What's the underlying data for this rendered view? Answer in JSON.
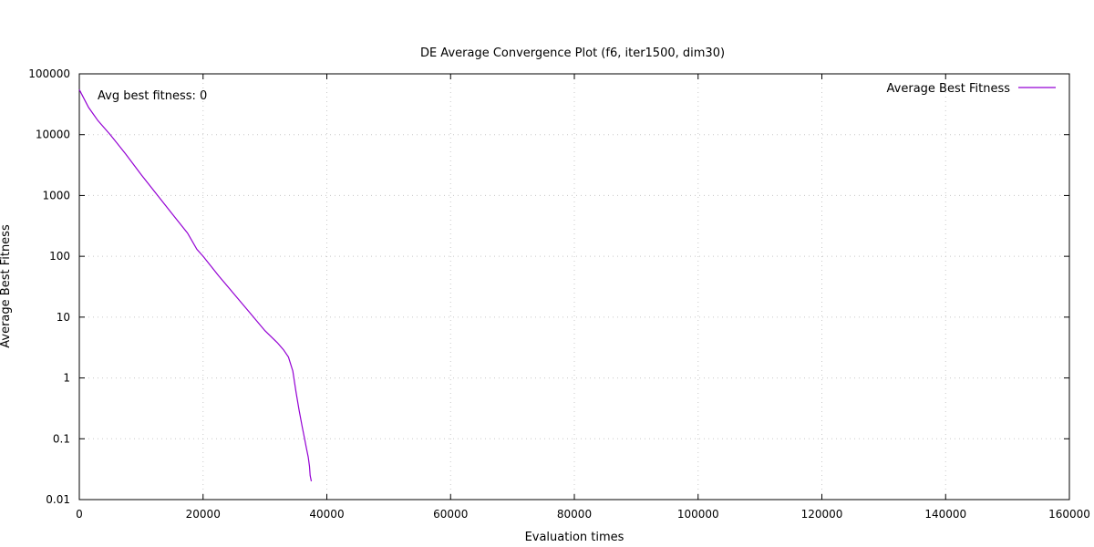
{
  "chart_data": {
    "type": "line",
    "title": "DE Average Convergence Plot (f6, iter1500, dim30)",
    "xlabel": "Evaluation times",
    "ylabel": "Average Best Fitness",
    "xlim": [
      0,
      160000
    ],
    "ylim": [
      0.01,
      100000
    ],
    "yscale": "log",
    "grid": true,
    "legend_position": "top-right",
    "x_ticks": [
      0,
      20000,
      40000,
      60000,
      80000,
      100000,
      120000,
      140000,
      160000
    ],
    "x_tick_labels": [
      "0",
      "20000",
      "40000",
      "60000",
      "80000",
      "100000",
      "120000",
      "140000",
      "160000"
    ],
    "y_ticks": [
      0.01,
      0.1,
      1,
      10,
      100,
      1000,
      10000,
      100000
    ],
    "y_tick_labels": [
      "0.01",
      "0.1",
      "1",
      "10",
      "100",
      "1000",
      "10000",
      "100000"
    ],
    "annotation": "Avg best fitness: 0",
    "series": [
      {
        "name": "Average Best Fitness",
        "color": "#9400d3",
        "x": [
          0,
          1500,
          3000,
          5000,
          7500,
          10000,
          12500,
          15000,
          17500,
          19000,
          20000,
          22500,
          25000,
          27500,
          30000,
          32000,
          33000,
          33800,
          34500,
          35000,
          35500,
          36000,
          36400,
          36700,
          37000,
          37200,
          37300,
          37500
        ],
        "y": [
          55000,
          28000,
          17000,
          10000,
          4800,
          2200,
          1050,
          500,
          240,
          130,
          100,
          48,
          24,
          12,
          6.0,
          3.8,
          2.9,
          2.2,
          1.3,
          0.6,
          0.3,
          0.16,
          0.1,
          0.07,
          0.05,
          0.035,
          0.025,
          0.02
        ]
      }
    ]
  }
}
